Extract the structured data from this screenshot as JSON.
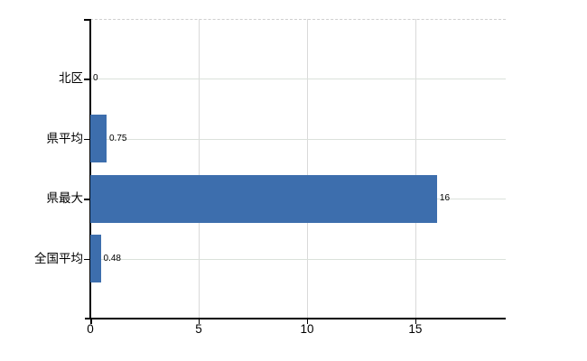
{
  "chart_data": {
    "type": "bar",
    "orientation": "horizontal",
    "title": "",
    "xlabel": "",
    "ylabel": "",
    "categories": [
      "北区",
      "県平均",
      "県最大",
      "全国平均"
    ],
    "values": [
      0,
      0.75,
      16,
      0.48
    ],
    "value_labels": [
      "0",
      "0.75",
      "16",
      "0.48"
    ],
    "x_ticks": [
      0,
      5,
      10,
      15
    ],
    "x_tick_labels": [
      "0",
      "5",
      "10",
      "15"
    ],
    "xlim": [
      0,
      19.17
    ],
    "grid": true,
    "legend": false,
    "colors": {
      "bar": "#3D6EAD",
      "horizontal_gridline": "#dbe1db",
      "vertical_gridline": "#d9d9d9",
      "top_border": "#cfcfcf",
      "axis": "#000000",
      "text": "#000000"
    }
  }
}
